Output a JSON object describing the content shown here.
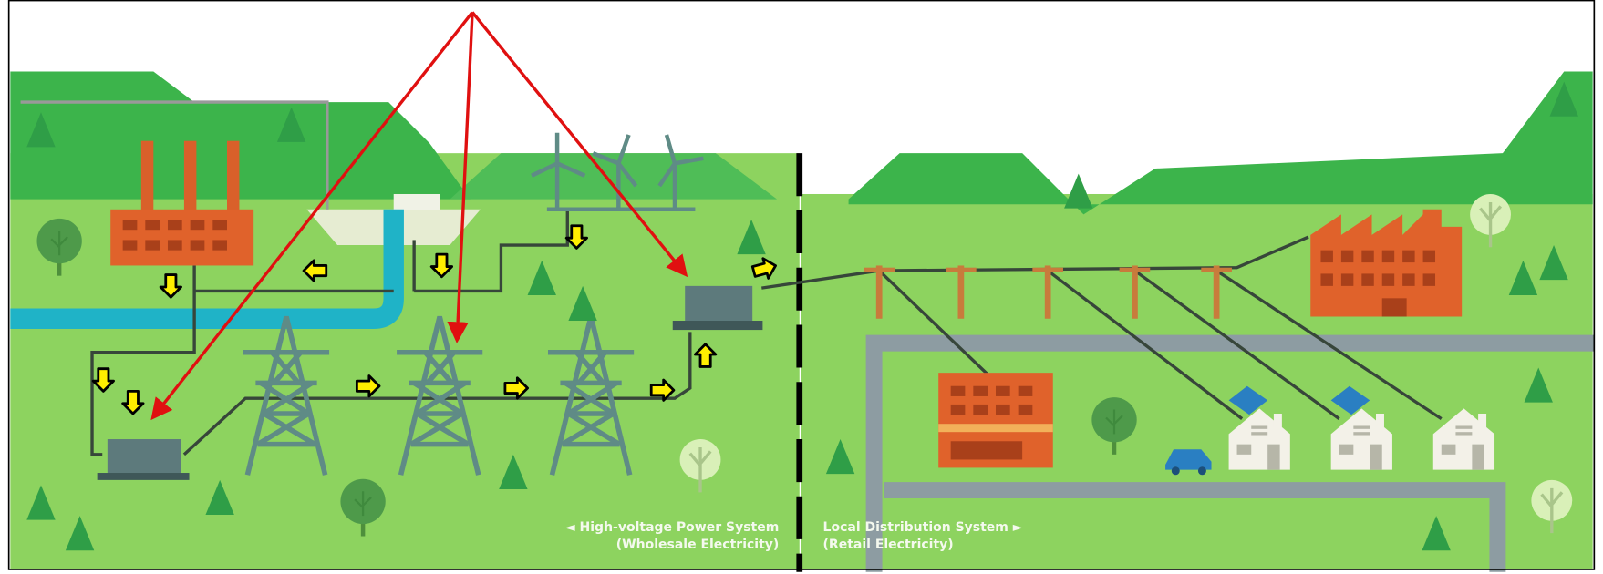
{
  "diagram": {
    "labels": {
      "left_title": "◄ High-voltage Power System",
      "left_subtitle": "(Wholesale Electricity)",
      "right_title": "Local Distribution System ►",
      "right_subtitle": "(Retail Electricity)"
    }
  }
}
